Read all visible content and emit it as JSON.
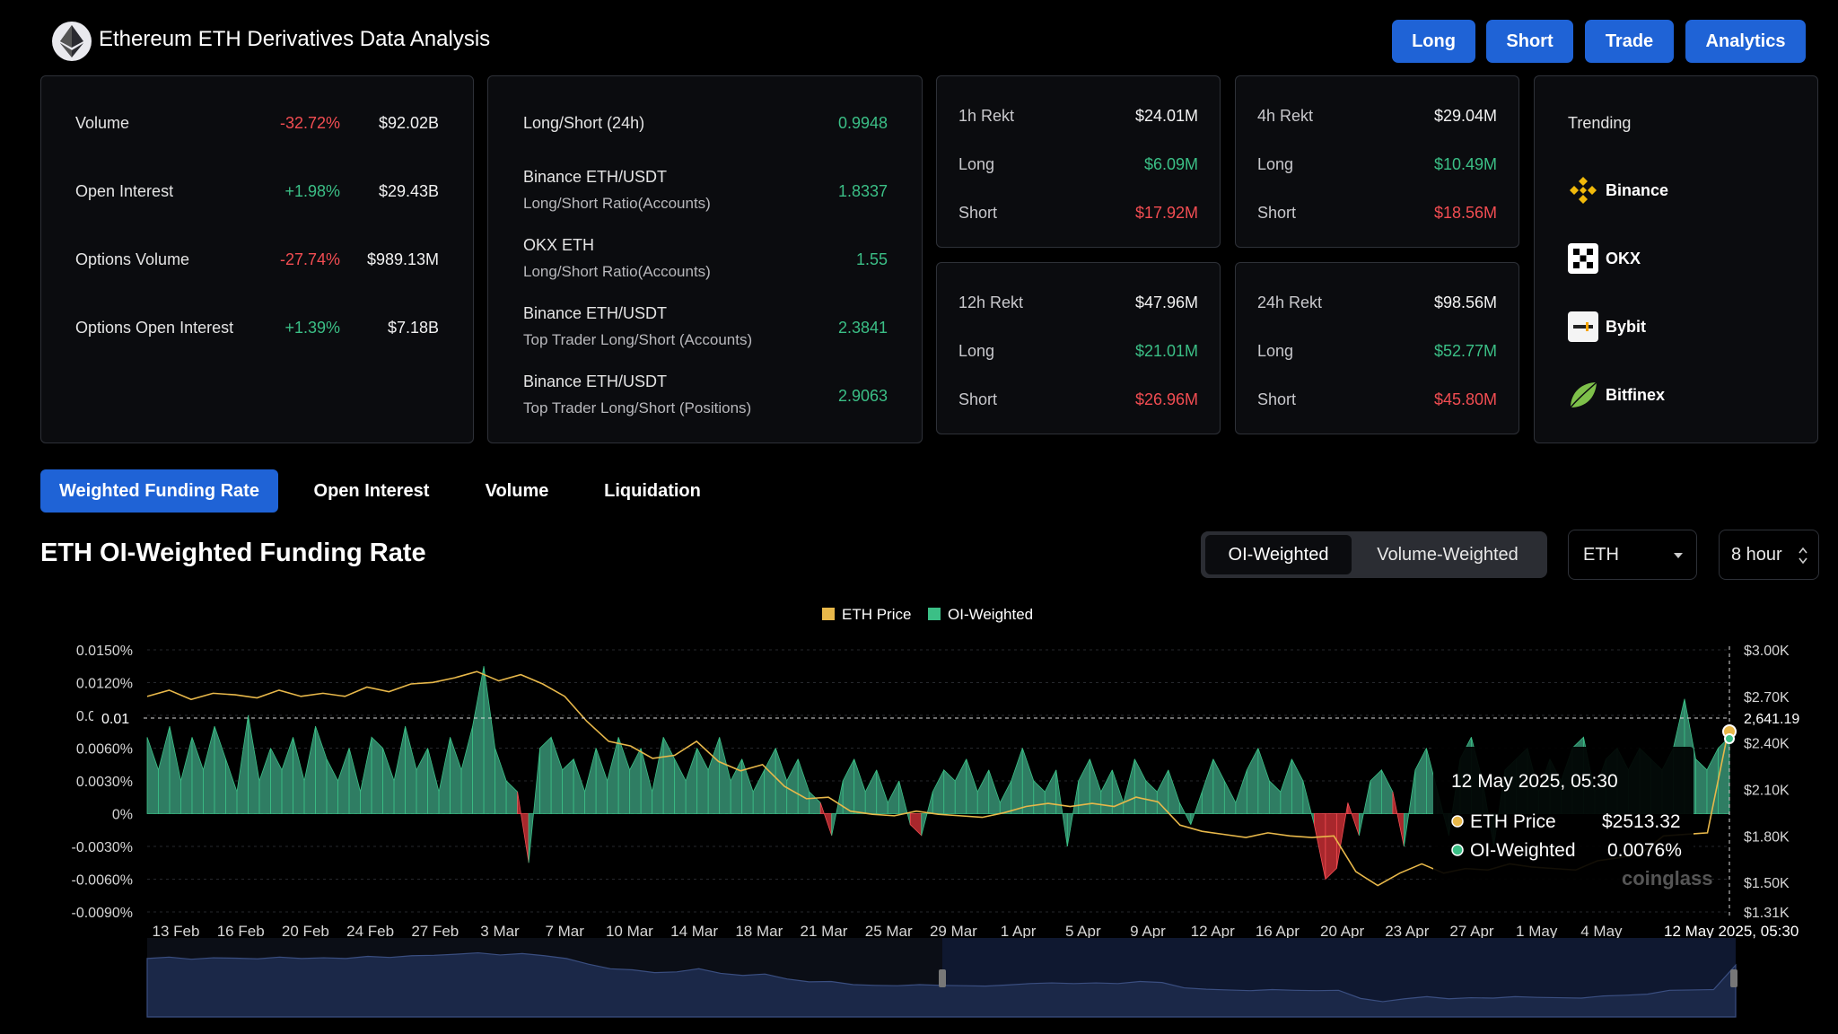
{
  "header": {
    "title": "Ethereum ETH Derivatives Data Analysis",
    "buttons": [
      "Long",
      "Short",
      "Trade",
      "Analytics"
    ]
  },
  "market_card": {
    "rows": [
      {
        "label": "Volume",
        "change": "-32.72%",
        "value": "$92.02B"
      },
      {
        "label": "Open Interest",
        "change": "+1.98%",
        "value": "$29.43B"
      },
      {
        "label": "Options Volume",
        "change": "-27.74%",
        "value": "$989.13M"
      },
      {
        "label": "Options Open Interest",
        "change": "+1.39%",
        "value": "$7.18B"
      }
    ]
  },
  "ratio_card": {
    "rows": [
      {
        "label": "Long/Short (24h)",
        "sub": "",
        "value": "0.9948"
      },
      {
        "label": "Binance ETH/USDT",
        "sub": "Long/Short Ratio(Accounts)",
        "value": "1.8337"
      },
      {
        "label": "OKX ETH",
        "sub": "Long/Short Ratio(Accounts)",
        "value": "1.55"
      },
      {
        "label": "Binance ETH/USDT",
        "sub": "Top Trader Long/Short (Accounts)",
        "value": "2.3841"
      },
      {
        "label": "Binance ETH/USDT",
        "sub": "Top Trader Long/Short (Positions)",
        "value": "2.9063"
      }
    ]
  },
  "rekt": [
    {
      "title": "1h Rekt",
      "total": "$24.01M",
      "long_label": "Long",
      "long": "$6.09M",
      "short_label": "Short",
      "short": "$17.92M"
    },
    {
      "title": "4h Rekt",
      "total": "$29.04M",
      "long_label": "Long",
      "long": "$10.49M",
      "short_label": "Short",
      "short": "$18.56M"
    },
    {
      "title": "12h Rekt",
      "total": "$47.96M",
      "long_label": "Long",
      "long": "$21.01M",
      "short_label": "Short",
      "short": "$26.96M"
    },
    {
      "title": "24h Rekt",
      "total": "$98.56M",
      "long_label": "Long",
      "long": "$52.77M",
      "short_label": "Short",
      "short": "$45.80M"
    }
  ],
  "trending": {
    "title": "Trending",
    "items": [
      "Binance",
      "OKX",
      "Bybit",
      "Bitfinex"
    ]
  },
  "tabs": [
    "Weighted Funding Rate",
    "Open Interest",
    "Volume",
    "Liquidation"
  ],
  "chart_section": {
    "title": "ETH OI-Weighted Funding Rate",
    "toggle": [
      "OI-Weighted",
      "Volume-Weighted"
    ],
    "symbol": "ETH",
    "interval": "8 hour"
  },
  "tooltip": {
    "date": "12 May 2025, 05:30",
    "price_label": "ETH Price",
    "price_value": "$2513.32",
    "oi_label": "OI-Weighted",
    "oi_value": "0.0076%"
  },
  "crosshair": {
    "y_label": "0.01",
    "price_label": "2,641.19",
    "x_label": "12 May 2025, 05:30"
  },
  "watermark": "coinglass",
  "colors": {
    "accent": "#1f63d6",
    "positive": "#3bbf86",
    "negative": "#f24d52",
    "price_line": "#e8b84a",
    "positive_fill": "#2f7d63",
    "negative_fill": "#a8272c"
  },
  "chart_data": {
    "type": "area",
    "legend": [
      "ETH Price",
      "OI-Weighted"
    ],
    "legend_position": "top-center",
    "left_axis_ticks": [
      "0.0150%",
      "0.0120%",
      "0.0090%",
      "0.0060%",
      "0.0030%",
      "0%",
      "-0.0030%",
      "-0.0060%",
      "-0.0090%"
    ],
    "right_axis_ticks": [
      "$3.00K",
      "$2.70K",
      "$2.40K",
      "$2.10K",
      "$1.80K",
      "$1.50K",
      "$1.31K"
    ],
    "x_ticks": [
      "13 Feb",
      "16 Feb",
      "20 Feb",
      "24 Feb",
      "27 Feb",
      "3 Mar",
      "7 Mar",
      "10 Mar",
      "14 Mar",
      "18 Mar",
      "21 Mar",
      "25 Mar",
      "29 Mar",
      "1 Apr",
      "5 Apr",
      "9 Apr",
      "12 Apr",
      "16 Apr",
      "20 Apr",
      "23 Apr",
      "27 Apr",
      "1 May",
      "4 May",
      "8"
    ],
    "left_ylim": [
      -0.009,
      0.015
    ],
    "right_ylim": [
      1310,
      3000
    ],
    "grid": "horizontal dashed",
    "series": [
      {
        "name": "OI-Weighted",
        "axis": "left",
        "unit": "%",
        "values": [
          0.007,
          0.004,
          0.008,
          0.003,
          0.007,
          0.004,
          0.008,
          0.005,
          0.002,
          0.009,
          0.003,
          0.006,
          0.004,
          0.007,
          0.003,
          0.008,
          0.005,
          0.003,
          0.006,
          0.002,
          0.007,
          0.006,
          0.003,
          0.008,
          0.004,
          0.006,
          0.002,
          0.007,
          0.004,
          0.008,
          0.0135,
          0.006,
          0.003,
          0.002,
          -0.0045,
          0.006,
          0.007,
          0.004,
          0.005,
          0.002,
          0.006,
          0.003,
          0.007,
          0.004,
          0.006,
          0.002,
          0.007,
          0.005,
          0.003,
          0.006,
          0.004,
          0.007,
          0.003,
          0.005,
          0.002,
          0.004,
          0.006,
          0.003,
          0.005,
          0.002,
          0.001,
          -0.002,
          0.003,
          0.005,
          0.002,
          0.004,
          0.001,
          0.003,
          -0.001,
          -0.002,
          0.002,
          0.004,
          0.003,
          0.005,
          0.002,
          0.004,
          0.001,
          0.003,
          0.006,
          0.003,
          0.002,
          0.004,
          -0.003,
          0.003,
          0.005,
          0.002,
          0.004,
          0.001,
          0.005,
          0.003,
          0.002,
          0.004,
          0.001,
          -0.001,
          0.002,
          0.005,
          0.003,
          0.001,
          0.004,
          0.006,
          0.003,
          0.002,
          0.005,
          0.003,
          -0.001,
          -0.006,
          -0.005,
          0.001,
          -0.002,
          0.003,
          0.004,
          0.002,
          -0.003,
          0.004,
          0.006,
          0.002,
          -0.002,
          0.005,
          0.007,
          0.003,
          -0.003,
          0.004,
          0.005,
          0.006,
          0.002,
          0.005,
          0.003,
          0.006,
          0.007,
          0.002,
          0.005,
          0.006,
          0.004,
          0.006,
          0.005,
          0.004,
          0.006,
          0.0105,
          0.005,
          0.004,
          0.006,
          0.007
        ],
        "note": "approximate shape"
      },
      {
        "name": "ETH Price",
        "axis": "right",
        "unit": "USD",
        "values": [
          2700,
          2740,
          2680,
          2720,
          2710,
          2690,
          2740,
          2700,
          2720,
          2700,
          2760,
          2730,
          2780,
          2790,
          2820,
          2860,
          2800,
          2840,
          2780,
          2700,
          2540,
          2410,
          2380,
          2300,
          2320,
          2410,
          2280,
          2220,
          2260,
          2120,
          2040,
          2050,
          1960,
          1940,
          1930,
          1960,
          1940,
          1930,
          1920,
          1950,
          1990,
          2010,
          1990,
          2010,
          1990,
          2050,
          2020,
          1870,
          1830,
          1810,
          1790,
          1820,
          1800,
          1790,
          1800,
          1570,
          1480,
          1560,
          1620,
          1560,
          1590,
          1580,
          1620,
          1600,
          1590,
          1580,
          1640,
          1660,
          1690,
          1800,
          1810,
          1820,
          2513
        ],
        "note": "approximate shape"
      }
    ]
  }
}
